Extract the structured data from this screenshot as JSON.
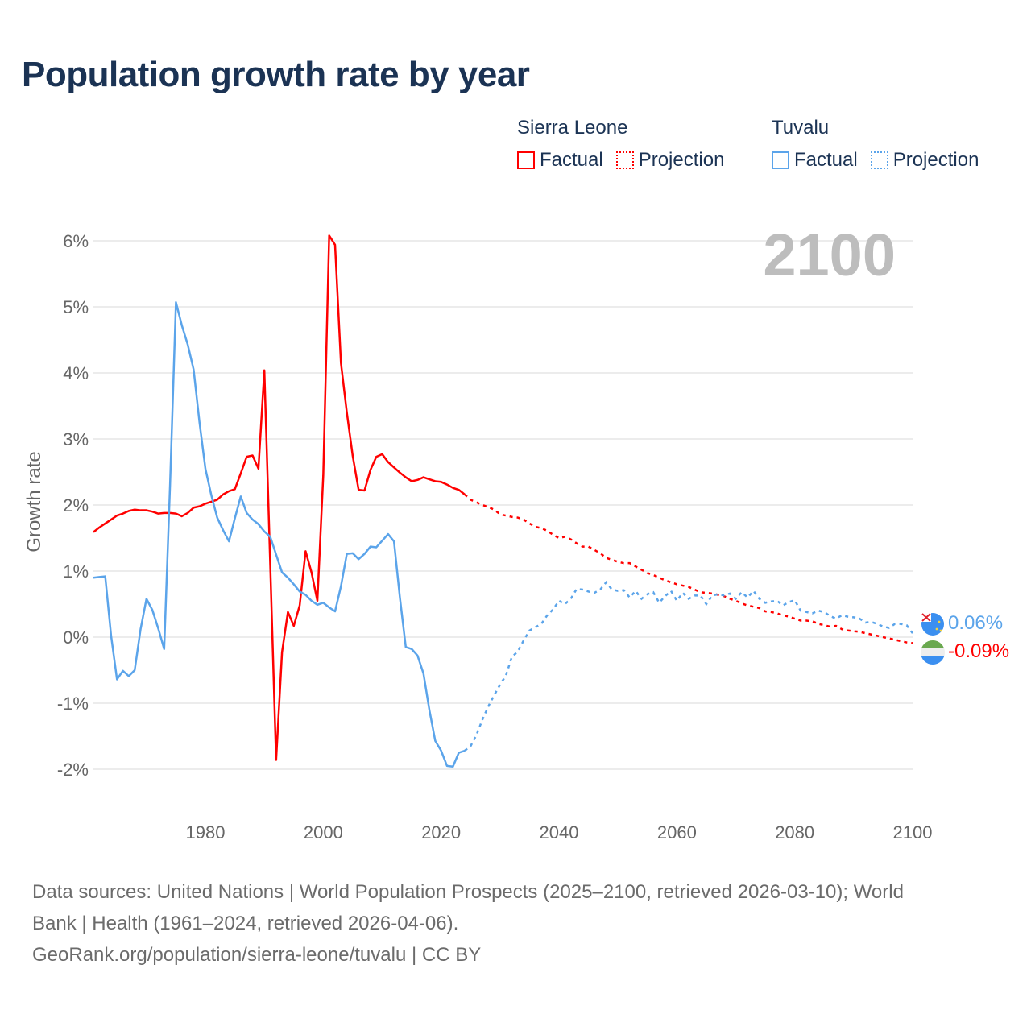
{
  "title": "Population growth rate by year",
  "legend": {
    "groups": [
      {
        "name": "Sierra Leone",
        "color": "#ff0000",
        "factual": "Factual",
        "projection": "Projection"
      },
      {
        "name": "Tuvalu",
        "color": "#5ba4ea",
        "factual": "Factual",
        "projection": "Projection"
      }
    ]
  },
  "year_watermark": "2100",
  "end_labels": {
    "tuvalu": "0.06%",
    "sierra_leone": "-0.09%"
  },
  "footer": {
    "line1": "Data sources: United Nations | World Population Prospects (2025–2100, retrieved 2026-03-10); World",
    "line2": "Bank | Health (1961–2024, retrieved 2026-04-06).",
    "line3": "GeoRank.org/population/sierra-leone/tuvalu | CC BY"
  },
  "chart_data": {
    "type": "line",
    "title": "Population growth rate by year",
    "xlabel": "",
    "ylabel": "Growth rate",
    "xlim": [
      1961,
      2100
    ],
    "ylim": [
      -2.6,
      6.3
    ],
    "x_ticks": [
      1980,
      2000,
      2020,
      2040,
      2060,
      2080,
      2100
    ],
    "y_ticks": [
      -2,
      -1,
      0,
      1,
      2,
      3,
      4,
      5,
      6
    ],
    "y_tick_labels": [
      "-2%",
      "-1%",
      "0%",
      "1%",
      "2%",
      "3%",
      "4%",
      "5%",
      "6%"
    ],
    "grid": true,
    "legend_position": "top-right",
    "series": [
      {
        "name": "Sierra Leone",
        "color": "#ff0000",
        "factual_start": 1961,
        "factual": [
          1.59,
          1.66,
          1.72,
          1.78,
          1.84,
          1.87,
          1.91,
          1.93,
          1.92,
          1.92,
          1.9,
          1.87,
          1.88,
          1.88,
          1.87,
          1.83,
          1.88,
          1.96,
          1.98,
          2.02,
          2.05,
          2.08,
          2.16,
          2.21,
          2.24,
          2.48,
          2.73,
          2.75,
          2.55,
          4.04,
          1.1,
          -1.86,
          -0.23,
          0.38,
          0.17,
          0.48,
          1.3,
          0.98,
          0.55,
          2.45,
          6.08,
          5.94,
          4.15,
          3.4,
          2.74,
          2.23,
          2.22,
          2.53,
          2.73,
          2.77,
          2.65,
          2.57,
          2.49,
          2.42,
          2.36,
          2.38,
          2.42,
          2.39,
          2.36,
          2.35,
          2.31,
          2.26,
          2.23,
          2.16
        ],
        "projection_start": 2025,
        "projection": [
          2.08,
          2.04,
          2.0,
          1.97,
          1.93,
          1.86,
          1.84,
          1.82,
          1.81,
          1.78,
          1.72,
          1.67,
          1.65,
          1.61,
          1.55,
          1.5,
          1.52,
          1.48,
          1.42,
          1.37,
          1.37,
          1.32,
          1.27,
          1.2,
          1.17,
          1.14,
          1.12,
          1.12,
          1.07,
          1.02,
          0.97,
          0.94,
          0.9,
          0.86,
          0.83,
          0.8,
          0.78,
          0.76,
          0.72,
          0.68,
          0.67,
          0.66,
          0.64,
          0.62,
          0.58,
          0.55,
          0.51,
          0.48,
          0.46,
          0.44,
          0.39,
          0.38,
          0.36,
          0.33,
          0.31,
          0.28,
          0.25,
          0.25,
          0.24,
          0.2,
          0.18,
          0.16,
          0.17,
          0.12,
          0.1,
          0.09,
          0.08,
          0.06,
          0.04,
          0.02,
          0.0,
          -0.02,
          -0.04,
          -0.06,
          -0.08,
          -0.09
        ]
      },
      {
        "name": "Tuvalu",
        "color": "#5ba4ea",
        "factual_start": 1961,
        "factual": [
          0.9,
          0.91,
          0.92,
          0.02,
          -0.64,
          -0.51,
          -0.59,
          -0.5,
          0.12,
          0.58,
          0.41,
          0.13,
          -0.18,
          2.3,
          5.07,
          4.72,
          4.43,
          4.05,
          3.25,
          2.55,
          2.15,
          1.81,
          1.62,
          1.45,
          1.8,
          2.13,
          1.88,
          1.78,
          1.71,
          1.6,
          1.52,
          1.25,
          0.98,
          0.9,
          0.8,
          0.69,
          0.64,
          0.55,
          0.49,
          0.52,
          0.45,
          0.39,
          0.77,
          1.26,
          1.27,
          1.18,
          1.26,
          1.37,
          1.36,
          1.46,
          1.56,
          1.45,
          0.6,
          -0.15,
          -0.18,
          -0.28,
          -0.55,
          -1.1,
          -1.57,
          -1.72,
          -1.95,
          -1.96,
          -1.75,
          -1.72
        ],
        "projection_start": 2025,
        "projection": [
          -1.65,
          -1.48,
          -1.25,
          -1.05,
          -0.88,
          -0.72,
          -0.58,
          -0.3,
          -0.22,
          -0.05,
          0.1,
          0.15,
          0.2,
          0.33,
          0.42,
          0.55,
          0.5,
          0.58,
          0.73,
          0.72,
          0.69,
          0.67,
          0.72,
          0.83,
          0.72,
          0.7,
          0.71,
          0.6,
          0.7,
          0.58,
          0.65,
          0.68,
          0.52,
          0.62,
          0.7,
          0.55,
          0.67,
          0.58,
          0.63,
          0.63,
          0.5,
          0.63,
          0.65,
          0.63,
          0.66,
          0.58,
          0.68,
          0.6,
          0.7,
          0.58,
          0.52,
          0.54,
          0.55,
          0.48,
          0.53,
          0.56,
          0.4,
          0.38,
          0.36,
          0.4,
          0.38,
          0.32,
          0.28,
          0.33,
          0.31,
          0.3,
          0.28,
          0.22,
          0.23,
          0.2,
          0.16,
          0.14,
          0.2,
          0.2,
          0.18,
          0.06
        ]
      }
    ]
  }
}
